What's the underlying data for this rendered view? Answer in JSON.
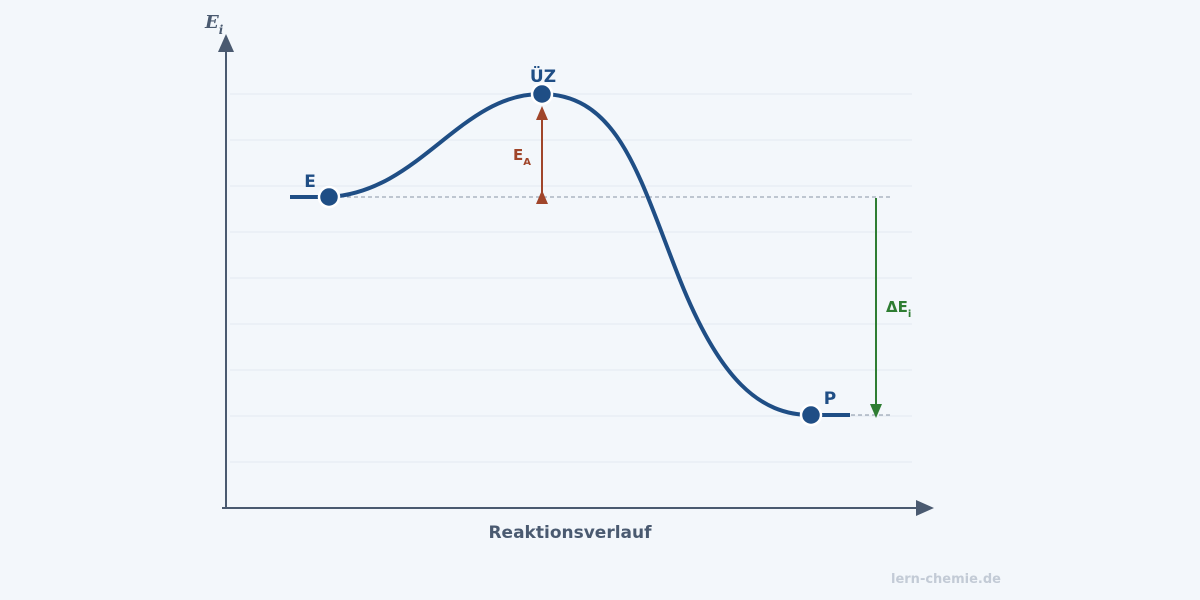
{
  "y_axis_label": {
    "main": "E",
    "sub": "i"
  },
  "x_axis_label": "Reaktionsverlauf",
  "points": [
    {
      "label": "E"
    },
    {
      "label": "ÜZ"
    },
    {
      "label": "P"
    }
  ],
  "activation_energy": {
    "main": "E",
    "sub": "A"
  },
  "reaction_energy": {
    "main": "ΔE",
    "sub": "i"
  },
  "watermark": "lern-chemie.de"
}
